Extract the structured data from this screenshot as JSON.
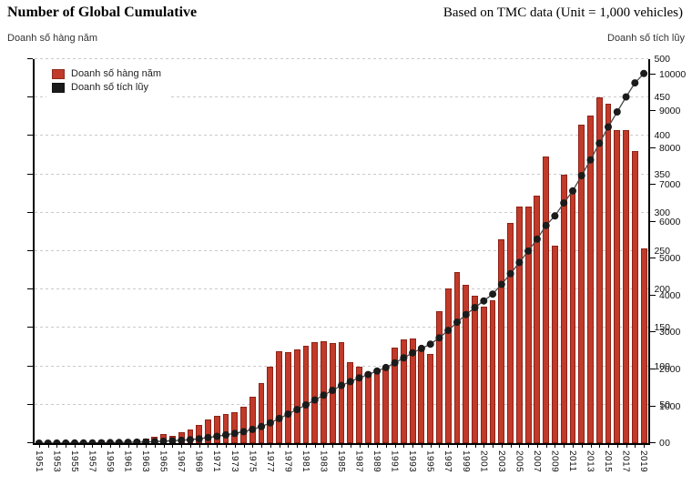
{
  "header": {
    "title": "Number of Global Cumulative",
    "note": "Based on TMC data (Unit = 1,000 vehicles)"
  },
  "axis_captions": {
    "left": "Doanh số hàng năm",
    "right": "Doanh số tích lũy"
  },
  "colors": {
    "bar_fill": "#c13a2a",
    "bar_border": "#8e2317",
    "line": "#4a4a4a",
    "marker": "#1b1b1b",
    "gridline": "#c9c9c9",
    "axis": "#000000"
  },
  "chart_data": {
    "type": "bar",
    "title": "Number of Global Cumulative",
    "subtitle": "Based on TMC data (Unit = 1,000 vehicles)",
    "unit": "1,000 vehicles",
    "x": [
      1951,
      1952,
      1953,
      1954,
      1955,
      1956,
      1957,
      1958,
      1959,
      1960,
      1961,
      1962,
      1963,
      1964,
      1965,
      1966,
      1967,
      1968,
      1969,
      1970,
      1971,
      1972,
      1973,
      1974,
      1975,
      1976,
      1977,
      1978,
      1979,
      1980,
      1981,
      1982,
      1983,
      1984,
      1985,
      1986,
      1987,
      1988,
      1989,
      1990,
      1991,
      1992,
      1993,
      1994,
      1995,
      1996,
      1997,
      1998,
      1999,
      2000,
      2001,
      2002,
      2003,
      2004,
      2005,
      2006,
      2007,
      2008,
      2009,
      2010,
      2011,
      2012,
      2013,
      2014,
      2015,
      2016,
      2017,
      2018,
      2019
    ],
    "series": [
      {
        "name": "Doanh số hàng năm",
        "type": "bar",
        "axis": "left",
        "color": "#c13a2a",
        "values": [
          0.3,
          0.5,
          1,
          1,
          1,
          2,
          2,
          3,
          3,
          4,
          4,
          5,
          6,
          8,
          12,
          10,
          14,
          18,
          24,
          31,
          36,
          38,
          40,
          48,
          60,
          78,
          100,
          120,
          118,
          122,
          127,
          132,
          133,
          130,
          132,
          105,
          100,
          92,
          94,
          97,
          125,
          135,
          136,
          121,
          116,
          172,
          201,
          223,
          206,
          192,
          178,
          186,
          265,
          287,
          308,
          308,
          322,
          373,
          257,
          350,
          330,
          415,
          427,
          450,
          442,
          408,
          408,
          380,
          254
        ]
      },
      {
        "name": "Doanh số tích lũy",
        "type": "line",
        "axis": "right",
        "color": "#1b1b1b",
        "values": [
          0,
          1,
          2,
          3,
          4,
          6,
          8,
          11,
          14,
          18,
          22,
          27,
          33,
          41,
          53,
          63,
          77,
          95,
          119,
          150,
          186,
          224,
          264,
          312,
          372,
          450,
          550,
          670,
          788,
          910,
          1037,
          1169,
          1302,
          1432,
          1564,
          1669,
          1769,
          1861,
          1955,
          2052,
          2177,
          2312,
          2448,
          2569,
          2685,
          2857,
          3058,
          3281,
          3487,
          3679,
          3857,
          4043,
          4308,
          4595,
          4903,
          5211,
          5533,
          5906,
          6163,
          6513,
          6843,
          7258,
          7685,
          8135,
          8577,
          8985,
          9393,
          9773,
          10027
        ]
      }
    ],
    "left_axis": {
      "label": "Doanh số hàng năm",
      "min": 0,
      "max": 500,
      "tick_step": 50
    },
    "right_axis": {
      "label": "Doanh số tích lũy",
      "min": 0,
      "max": 10000,
      "tick_step": 1000
    },
    "x_axis": {
      "label_every_n_years": 2,
      "first_label": 1951,
      "label_rotation_deg": 90
    },
    "grid": "dashed horizontal, one per left-axis tick",
    "legend_position": "top-left inside plot"
  }
}
